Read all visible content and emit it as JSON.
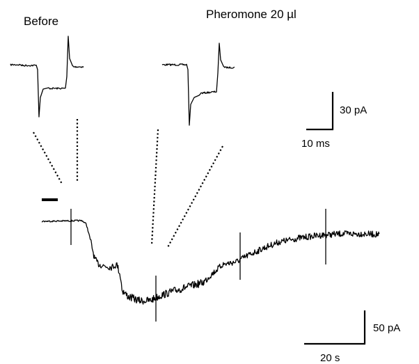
{
  "panels": {
    "before_label": "Before",
    "after_label": "Pheromone 20 µl"
  },
  "scale_bars": {
    "inset": {
      "vertical_label": "30 pA",
      "horizontal_label": "10 ms"
    },
    "main": {
      "vertical_label": "50 pA",
      "horizontal_label": "20 s"
    }
  },
  "colors": {
    "trace": "#000000",
    "background": "#ffffff"
  }
}
